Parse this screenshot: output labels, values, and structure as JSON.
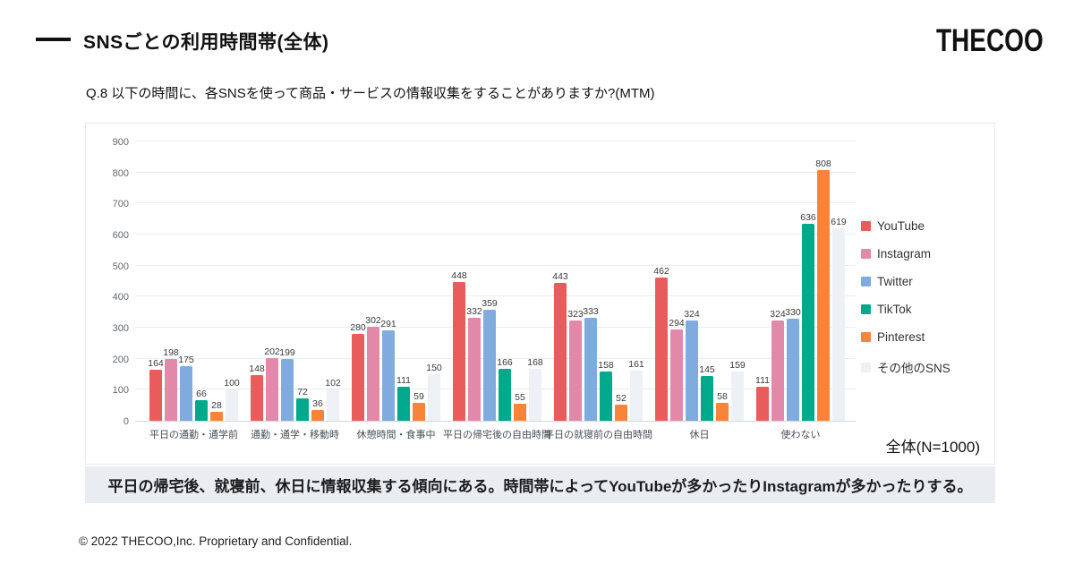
{
  "header": {
    "title": "SNSごとの利用時間帯(全体)",
    "logo": "THECOO"
  },
  "question": "Q.8 以下の時間に、各SNSを使って商品・サービスの情報収集をすることがありますか?(MTM)",
  "chart_data": {
    "type": "bar",
    "title": "SNSごとの利用時間帯(全体)",
    "categories": [
      "平日の通勤・通学前",
      "通勤・通学・移動時",
      "休憩時間・食事中",
      "平日の帰宅後の自由時間",
      "平日の就寝前の自由時間",
      "休日",
      "使わない"
    ],
    "series": [
      {
        "name": "YouTube",
        "color": "#e85c5c",
        "values": [
          164,
          148,
          280,
          448,
          443,
          462,
          111
        ]
      },
      {
        "name": "Instagram",
        "color": "#e289a9",
        "values": [
          198,
          202,
          302,
          332,
          323,
          294,
          324
        ]
      },
      {
        "name": "Twitter",
        "color": "#7fabdf",
        "values": [
          175,
          199,
          291,
          359,
          333,
          324,
          330
        ]
      },
      {
        "name": "TikTok",
        "color": "#00a98c",
        "values": [
          66,
          72,
          111,
          166,
          158,
          145,
          636
        ]
      },
      {
        "name": "Pinterest",
        "color": "#f8843c",
        "values": [
          28,
          36,
          59,
          55,
          52,
          58,
          808
        ]
      },
      {
        "name": "その他のSNS",
        "color": "#edf0f4",
        "values": [
          100,
          102,
          150,
          168,
          161,
          159,
          619
        ]
      }
    ],
    "xlabel": "",
    "ylabel": "",
    "ylim": [
      0,
      900
    ],
    "ytick_step": 100,
    "grid": true,
    "legend_position": "right"
  },
  "sample_label": "全体(N=1000)",
  "summary": "平日の帰宅後、就寝前、休日に情報収集する傾向にある。時間帯によってYouTubeが多かったりInstagramが多かったりする。",
  "footer": "© 2022 THECOO,Inc. Proprietary and Confidential."
}
